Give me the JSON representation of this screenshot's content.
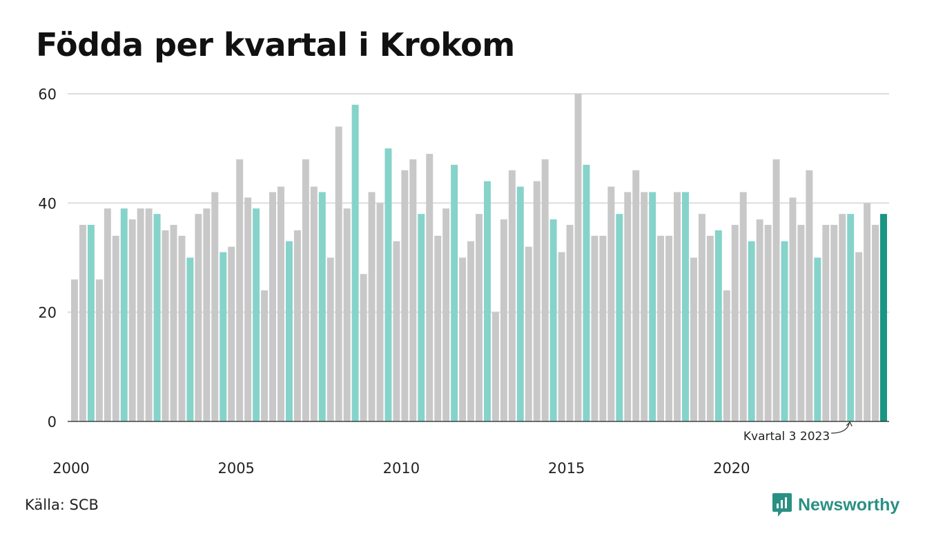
{
  "title": "Födda per kvartal i Krokom",
  "source": "Källa: SCB",
  "brand": {
    "name": "Newsworthy",
    "color": "#2a9083",
    "icon": "newsworthy-logo-icon"
  },
  "colors": {
    "default_bar": "#c8c8c8",
    "q4_bar": "#86d3ca",
    "highlight_bar": "#1a9583",
    "axis": "#222222",
    "grid": "#dddddd"
  },
  "chart_data": {
    "type": "bar",
    "title": "Födda per kvartal i Krokom",
    "xlabel": "",
    "ylabel": "",
    "ylim": [
      0,
      60
    ],
    "yticks": [
      0,
      20,
      40,
      60
    ],
    "xticks": [
      "2000",
      "2005",
      "2010",
      "2015",
      "2020"
    ],
    "grid": true,
    "start": "2000 Q1",
    "end": "2024 Q3",
    "highlight": "2024 Q3",
    "annotation": "Kvartal 3 2023",
    "annotation_target": "2023 Q3",
    "values": [
      26,
      36,
      36,
      26,
      39,
      34,
      39,
      37,
      39,
      39,
      38,
      35,
      36,
      34,
      30,
      38,
      39,
      42,
      31,
      32,
      48,
      41,
      39,
      24,
      42,
      43,
      33,
      35,
      48,
      43,
      42,
      30,
      54,
      39,
      58,
      27,
      42,
      40,
      50,
      33,
      46,
      48,
      38,
      49,
      34,
      39,
      47,
      30,
      33,
      38,
      44,
      20,
      37,
      46,
      43,
      32,
      44,
      48,
      37,
      31,
      36,
      60,
      47,
      34,
      34,
      43,
      38,
      42,
      46,
      42,
      42,
      34,
      34,
      42,
      42,
      30,
      38,
      34,
      35,
      24,
      36,
      42,
      33,
      37,
      36,
      48,
      33,
      41,
      36,
      46,
      30,
      36,
      36,
      38,
      38,
      31,
      40,
      36,
      38
    ]
  }
}
